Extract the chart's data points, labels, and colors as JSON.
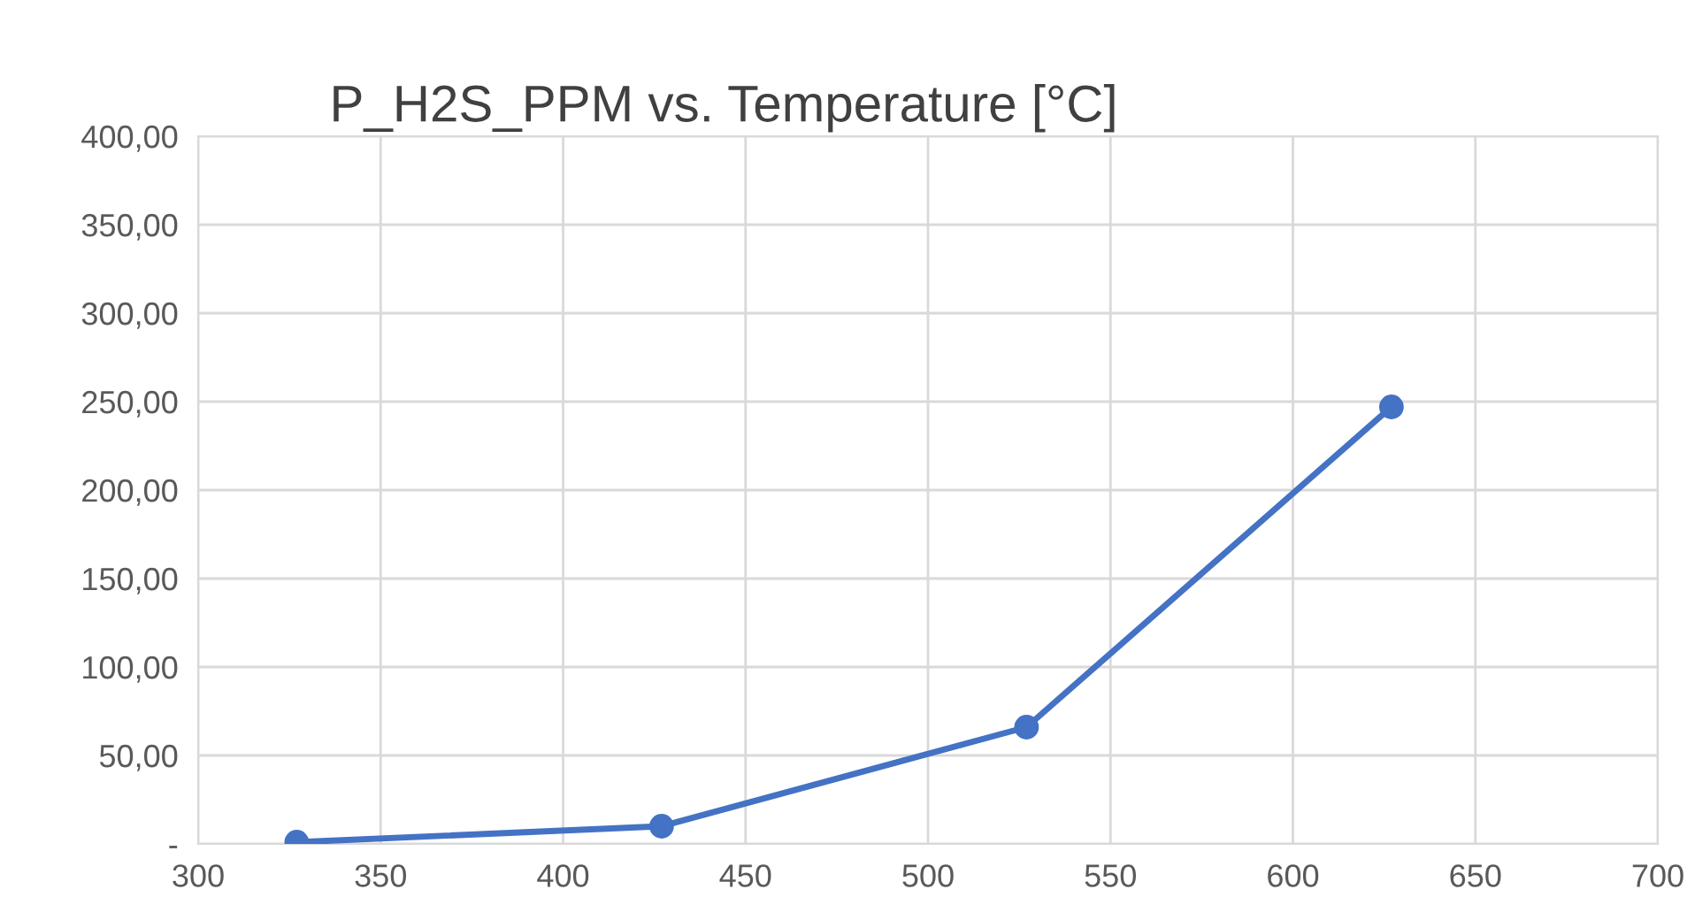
{
  "chart_data": {
    "type": "line",
    "title": "P_H2S_PPM vs. Temperature [°C]",
    "x": [
      327,
      427,
      527,
      627
    ],
    "series": [
      {
        "color": "#4472c4",
        "values": [
          1,
          10,
          66,
          247
        ]
      }
    ],
    "line_style": "solid",
    "marker": "circle",
    "xlim": [
      300,
      700
    ],
    "xticks": [
      300,
      350,
      400,
      450,
      500,
      550,
      600,
      650,
      700
    ],
    "ylim": [
      0,
      400
    ],
    "yticks": [
      {
        "value": 0,
        "label": "-"
      },
      {
        "value": 50,
        "label": "50,00"
      },
      {
        "value": 100,
        "label": "100,00"
      },
      {
        "value": 150,
        "label": "150,00"
      },
      {
        "value": 200,
        "label": "200,00"
      },
      {
        "value": 250,
        "label": "250,00"
      },
      {
        "value": 300,
        "label": "300,00"
      },
      {
        "value": 350,
        "label": "350,00"
      },
      {
        "value": 400,
        "label": "400,00"
      }
    ],
    "grid": true,
    "legend": false
  }
}
